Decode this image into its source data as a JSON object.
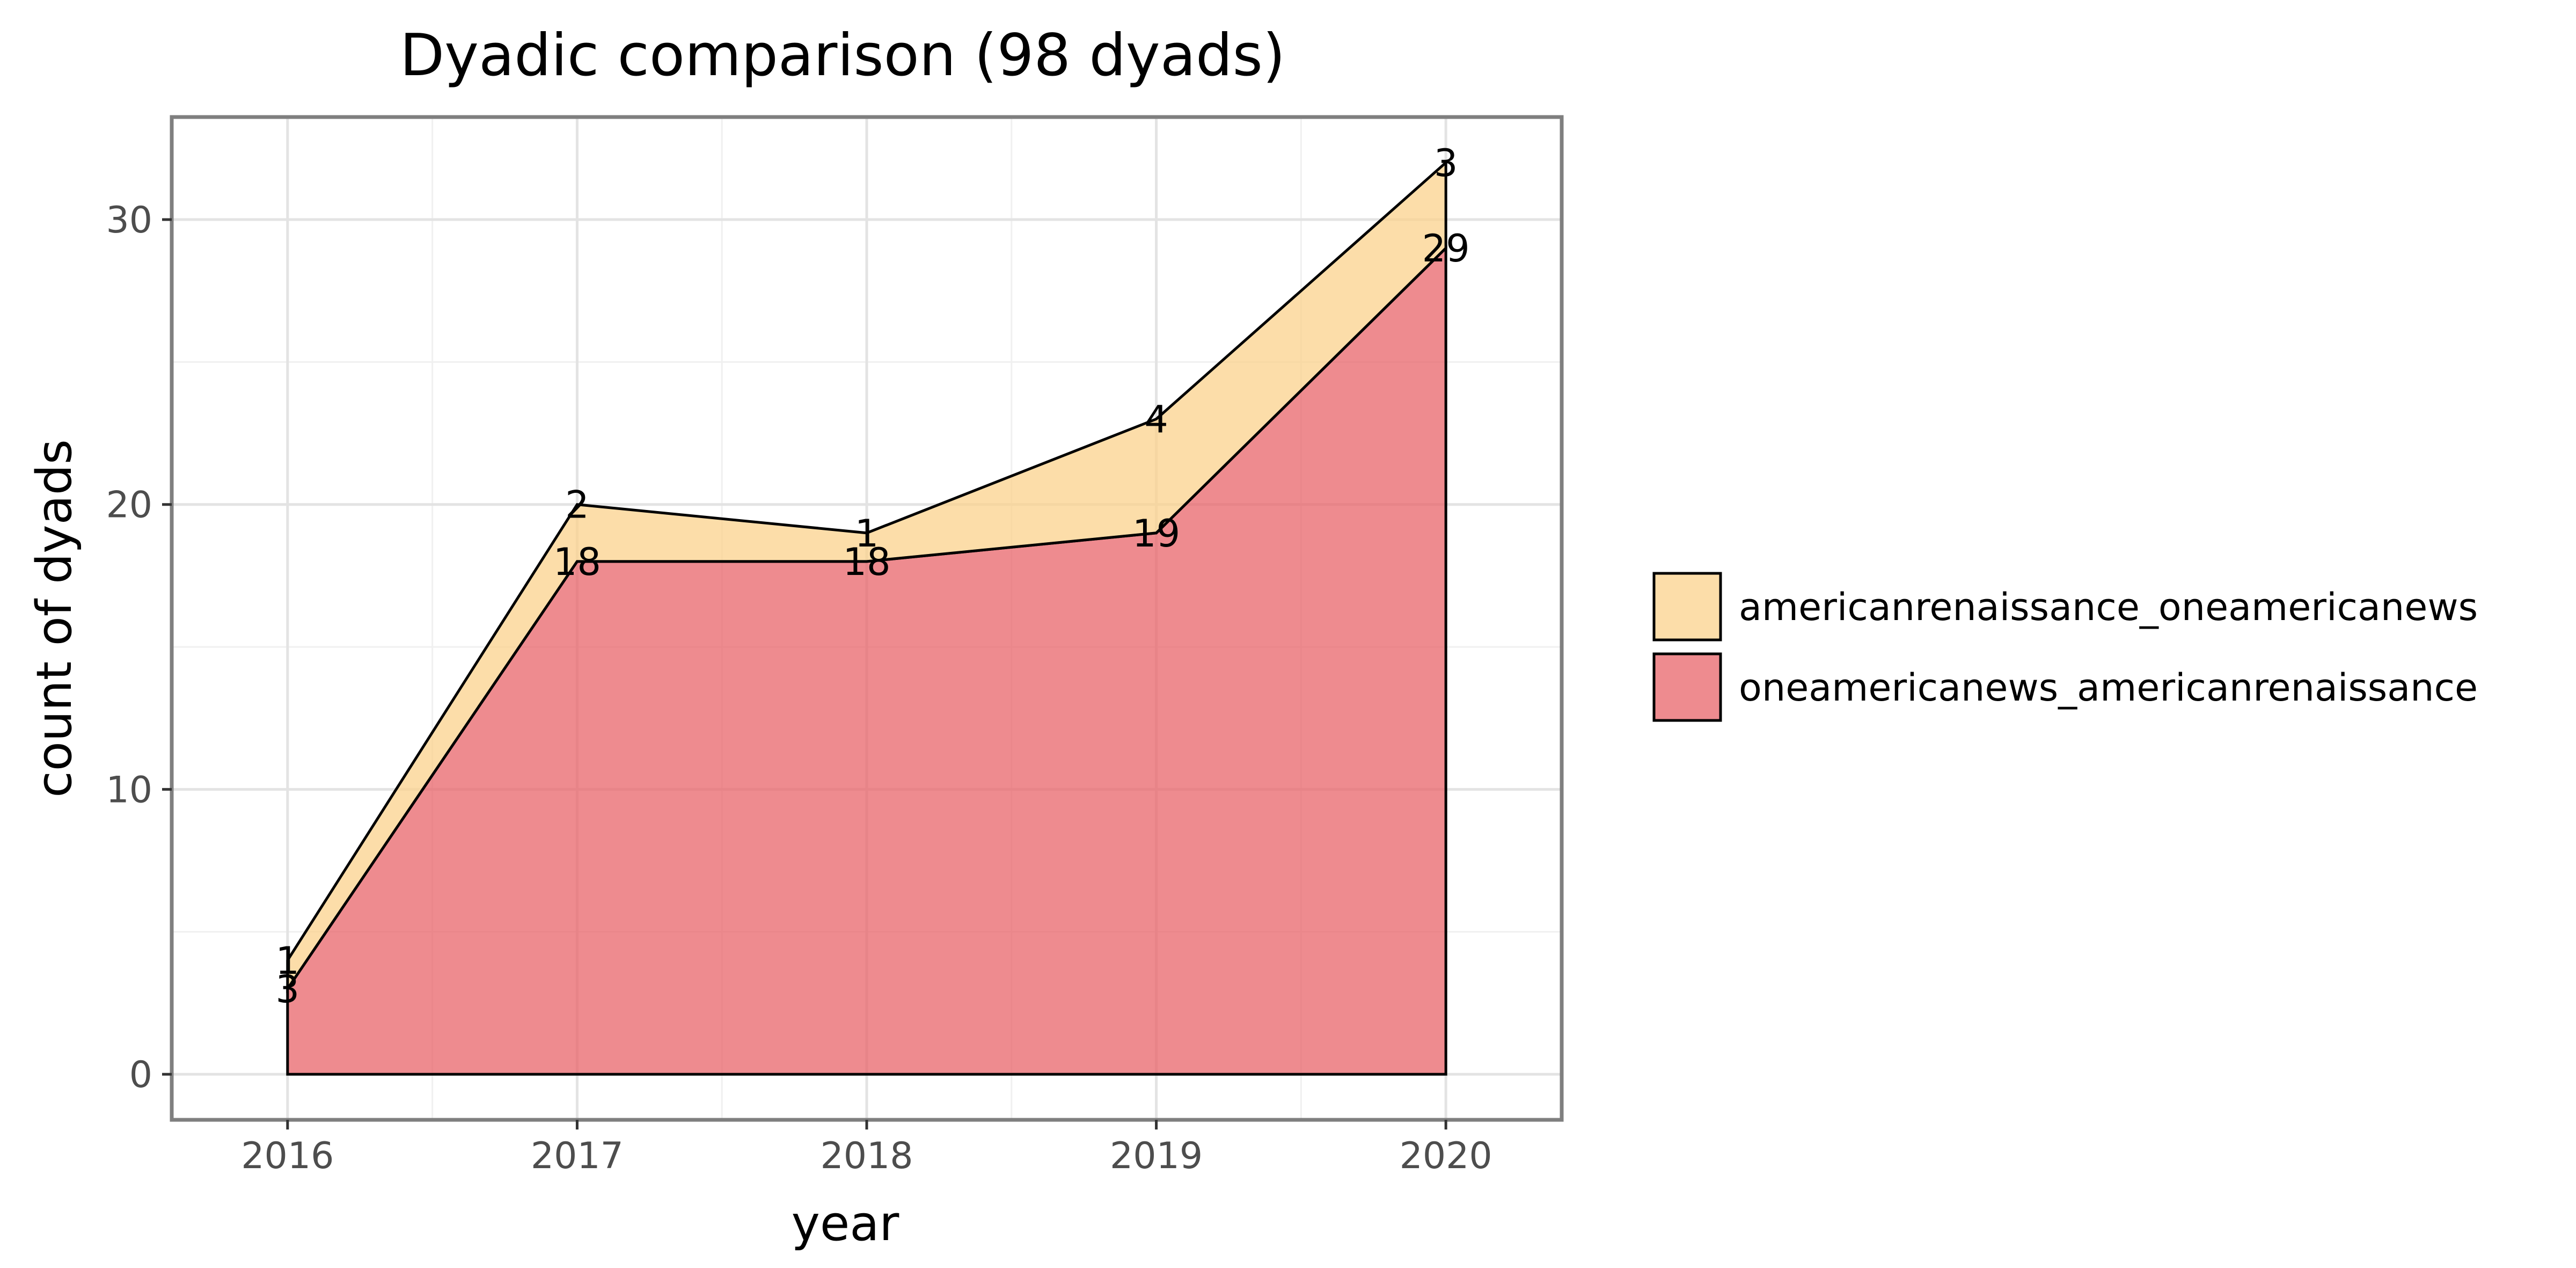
{
  "chart_data": {
    "type": "area",
    "stacked": true,
    "title": "Dyadic comparison (98 dyads)",
    "xlabel": "year",
    "ylabel": "count of dyads",
    "x": [
      2016,
      2017,
      2018,
      2019,
      2020
    ],
    "x_ticks": [
      "2016",
      "2017",
      "2018",
      "2019",
      "2020"
    ],
    "xlim": [
      2015.6,
      2020.4
    ],
    "y_ticks": [
      "0",
      "10",
      "20",
      "30"
    ],
    "ylim": [
      -1.6,
      33.6
    ],
    "grid": true,
    "legend_position": "right",
    "series": [
      {
        "name": "oneamericanews_americanrenaissance",
        "values": [
          3,
          18,
          18,
          19,
          29
        ],
        "labels": [
          "3",
          "18",
          "18",
          "19",
          "29"
        ],
        "color": "#e8646a"
      },
      {
        "name": "americanrenaissance_oneamericanews",
        "values": [
          1,
          2,
          1,
          4,
          3
        ],
        "labels": [
          "1",
          "2",
          "1",
          "4",
          "3"
        ],
        "color": "#fbd28c"
      }
    ]
  }
}
